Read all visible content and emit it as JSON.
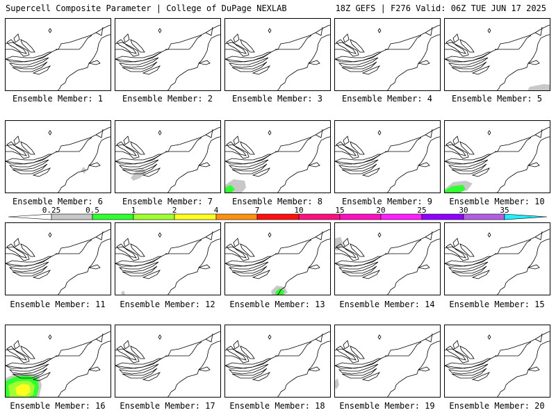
{
  "header": {
    "left_title": "Supercell Composite Parameter | College of DuPage NEXLAB",
    "right_title": "18Z GEFS | F276 Valid: 06Z TUE JUN 17 2025"
  },
  "members": [
    {
      "label": "Ensemble Member: 1",
      "blobs": []
    },
    {
      "label": "Ensemble Member: 2",
      "blobs": []
    },
    {
      "label": "Ensemble Member: 3",
      "blobs": []
    },
    {
      "label": "Ensemble Member: 4",
      "blobs": []
    },
    {
      "label": "Ensemble Member: 5",
      "blobs": [
        {
          "level": "0.25",
          "pts": [
            [
              118,
              105
            ],
            [
              122,
              98
            ],
            [
              132,
              96
            ],
            [
              142,
              94
            ],
            [
              153,
              95
            ],
            [
              153,
              105
            ]
          ]
        }
      ]
    },
    {
      "label": "Ensemble Member: 6",
      "blobs": [
        {
          "level": "0.25",
          "pts": [
            [
              108,
              72
            ],
            [
              112,
              66
            ],
            [
              116,
              70
            ],
            [
              114,
              76
            ]
          ]
        }
      ]
    },
    {
      "label": "Ensemble Member: 7",
      "blobs": [
        {
          "level": "0.25",
          "pts": [
            [
              22,
              82
            ],
            [
              30,
              72
            ],
            [
              40,
              68
            ],
            [
              44,
              74
            ],
            [
              36,
              82
            ],
            [
              26,
              86
            ]
          ]
        }
      ]
    },
    {
      "label": "Ensemble Member: 8",
      "blobs": [
        {
          "level": "0.25",
          "pts": [
            [
              0,
              92
            ],
            [
              12,
              84
            ],
            [
              28,
              86
            ],
            [
              30,
              96
            ],
            [
              22,
              105
            ],
            [
              0,
              105
            ]
          ]
        },
        {
          "level": "0.5",
          "pts": [
            [
              0,
              96
            ],
            [
              8,
              92
            ],
            [
              14,
              98
            ],
            [
              8,
              105
            ],
            [
              0,
              105
            ]
          ]
        }
      ]
    },
    {
      "label": "Ensemble Member: 9",
      "blobs": []
    },
    {
      "label": "Ensemble Member: 10",
      "blobs": [
        {
          "level": "0.25",
          "pts": [
            [
              0,
              98
            ],
            [
              12,
              88
            ],
            [
              30,
              86
            ],
            [
              40,
              90
            ],
            [
              32,
              100
            ],
            [
              14,
              105
            ],
            [
              0,
              105
            ]
          ]
        },
        {
          "level": "0.5",
          "pts": [
            [
              0,
              100
            ],
            [
              10,
              94
            ],
            [
              26,
              92
            ],
            [
              30,
              98
            ],
            [
              20,
              105
            ],
            [
              0,
              105
            ]
          ]
        }
      ]
    },
    {
      "label": "Ensemble Member: 11",
      "blobs": []
    },
    {
      "label": "Ensemble Member: 12",
      "blobs": [
        {
          "level": "0.25",
          "pts": [
            [
              8,
              100
            ],
            [
              12,
              97
            ],
            [
              14,
              102
            ],
            [
              10,
              105
            ]
          ]
        }
      ]
    },
    {
      "label": "Ensemble Member: 13",
      "blobs": [
        {
          "level": "0.25",
          "pts": [
            [
              66,
              98
            ],
            [
              74,
              90
            ],
            [
              86,
              92
            ],
            [
              90,
              100
            ],
            [
              82,
              105
            ],
            [
              68,
              105
            ]
          ]
        },
        {
          "level": "0.5",
          "pts": [
            [
              72,
              100
            ],
            [
              78,
              94
            ],
            [
              86,
              98
            ],
            [
              82,
              105
            ],
            [
              74,
              105
            ]
          ]
        }
      ]
    },
    {
      "label": "Ensemble Member: 14",
      "blobs": [
        {
          "level": "0.25",
          "pts": [
            [
              0,
              22
            ],
            [
              8,
              20
            ],
            [
              12,
              30
            ],
            [
              4,
              40
            ],
            [
              0,
              38
            ]
          ]
        }
      ]
    },
    {
      "label": "Ensemble Member: 15",
      "blobs": []
    },
    {
      "label": "Ensemble Member: 16",
      "blobs": [
        {
          "level": "0.25",
          "pts": [
            [
              0,
              76
            ],
            [
              14,
              70
            ],
            [
              30,
              68
            ],
            [
              48,
              72
            ],
            [
              52,
              86
            ],
            [
              48,
              105
            ],
            [
              0,
              105
            ]
          ]
        },
        {
          "level": "0.5",
          "pts": [
            [
              0,
              80
            ],
            [
              14,
              74
            ],
            [
              30,
              72
            ],
            [
              46,
              76
            ],
            [
              48,
              90
            ],
            [
              44,
              105
            ],
            [
              0,
              105
            ]
          ]
        },
        {
          "level": "1",
          "pts": [
            [
              4,
              86
            ],
            [
              18,
              80
            ],
            [
              34,
              80
            ],
            [
              42,
              86
            ],
            [
              40,
              100
            ],
            [
              30,
              105
            ],
            [
              6,
              105
            ]
          ]
        },
        {
          "level": "2",
          "pts": [
            [
              14,
              90
            ],
            [
              24,
              84
            ],
            [
              34,
              86
            ],
            [
              36,
              96
            ],
            [
              28,
              102
            ],
            [
              16,
              100
            ]
          ]
        }
      ]
    },
    {
      "label": "Ensemble Member: 17",
      "blobs": []
    },
    {
      "label": "Ensemble Member: 18",
      "blobs": []
    },
    {
      "label": "Ensemble Member: 19",
      "blobs": [
        {
          "level": "0.25",
          "pts": [
            [
              0,
              80
            ],
            [
              4,
              76
            ],
            [
              6,
              86
            ],
            [
              2,
              92
            ],
            [
              0,
              90
            ]
          ]
        }
      ]
    },
    {
      "label": "Ensemble Member: 20",
      "blobs": []
    }
  ],
  "colorbar": {
    "ticks": [
      "0.25",
      "0.5",
      "1",
      "2",
      "4",
      "7",
      "10",
      "15",
      "20",
      "25",
      "30",
      "35"
    ],
    "colors": [
      "#c8c8c8",
      "#30ff30",
      "#a0ff30",
      "#ffff20",
      "#ff9010",
      "#ff1010",
      "#ff1080",
      "#ff10c0",
      "#ff20ff",
      "#9000ff",
      "#b060e0",
      "#20f0ff"
    ],
    "lowest_color": "#ffffff"
  }
}
